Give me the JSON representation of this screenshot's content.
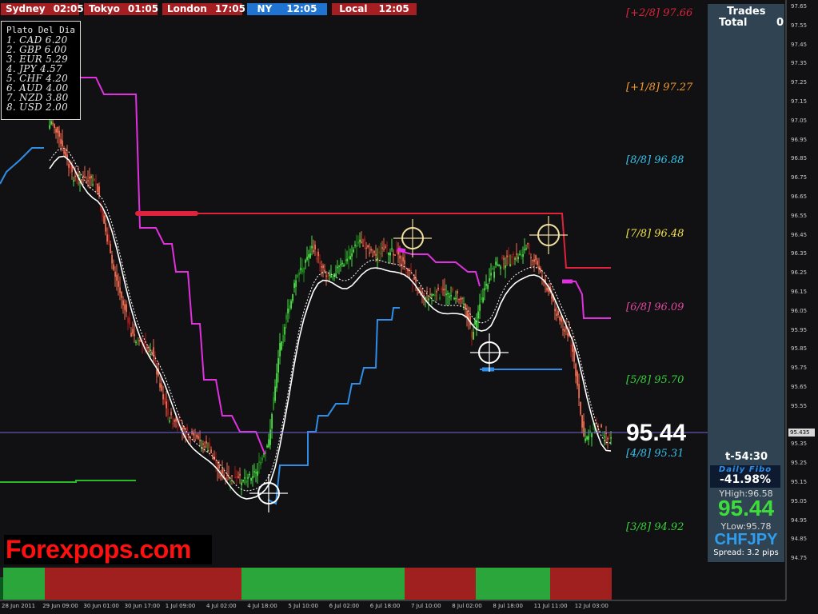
{
  "sessions": [
    {
      "name": "Sydney",
      "time": "02:05",
      "color": "#a51f22"
    },
    {
      "name": "Tokyo",
      "time": "01:05",
      "color": "#a51f22"
    },
    {
      "name": "London",
      "time": "17:05",
      "color": "#a51f22"
    },
    {
      "name": "NY",
      "time": "12:05",
      "color": "#1e74d0"
    },
    {
      "name": "Local",
      "time": "12:05",
      "color": "#a51f22"
    }
  ],
  "plato": {
    "title": "Plato Del Dia",
    "rows": [
      "1. CAD  6.20",
      "2. GBP  6.00",
      "3. EUR  5.29",
      "4. JPY  4.57",
      "5. CHF  4.20",
      "6. AUD  4.00",
      "7. NZD  3.80",
      "8. USD  2.00"
    ]
  },
  "fibo_levels": [
    {
      "label": "[+2/8]  97.66",
      "color": "#e0233a"
    },
    {
      "label": "[+1/8]  97.27",
      "color": "#f59a2c"
    },
    {
      "label": "[8/8]  96.88",
      "color": "#38c2e8"
    },
    {
      "label": "[7/8]  96.48",
      "color": "#f2e450"
    },
    {
      "label": "[6/8]  96.09",
      "color": "#e2489f"
    },
    {
      "label": "[5/8]  95.70",
      "color": "#36d23a"
    },
    {
      "label": "[4/8]  95.31",
      "color": "#38c2e8"
    },
    {
      "label": "[3/8]  94.92",
      "color": "#36d23a"
    }
  ],
  "current_price": "95.44",
  "panel": {
    "trades_label": "Trades",
    "total_label": "Total",
    "total_value": "0",
    "timer": "t-54:30",
    "daily_fibo_label": "Daily Fibo",
    "daily_fibo_value": "-41.98%",
    "yhigh": "YHigh:96.58",
    "price": "95.44",
    "ylow": "YLow:95.78",
    "symbol": "CHFJPY",
    "spread": "Spread: 3.2 pips"
  },
  "watermark": "Forexpops.com",
  "price_scale": [
    "97.65",
    "97.55",
    "97.45",
    "97.35",
    "97.25",
    "97.15",
    "97.05",
    "96.95",
    "96.85",
    "96.75",
    "96.65",
    "96.55",
    "96.45",
    "96.35",
    "96.25",
    "96.15",
    "96.05",
    "95.95",
    "95.85",
    "95.75",
    "95.65",
    "95.55",
    "95.435",
    "95.35",
    "95.25",
    "95.15",
    "95.05",
    "94.95",
    "94.85",
    "94.75"
  ],
  "time_axis": [
    "28 Jun 2011",
    "29 Jun 09:00",
    "30 Jun 01:00",
    "30 Jun 17:00",
    "1 Jul 09:00",
    "4 Jul 02:00",
    "4 Jul 18:00",
    "5 Jul 10:00",
    "6 Jul 02:00",
    "6 Jul 18:00",
    "7 Jul 10:00",
    "8 Jul 02:00",
    "8 Jul 18:00",
    "11 Jul 11:00",
    "12 Jul 03:00"
  ],
  "colors": {
    "bull": "#46e040",
    "bear": "#f26a4c",
    "bull_dark": "#1a8a1a",
    "bear_dark": "#b01818",
    "magenta": "#e030e0",
    "blue": "#2f8ee8",
    "red": "#e0223d",
    "green": "#2aba2a",
    "panel": "#2f4352",
    "strip_green": "#2aa63a",
    "strip_red": "#a02020"
  }
}
